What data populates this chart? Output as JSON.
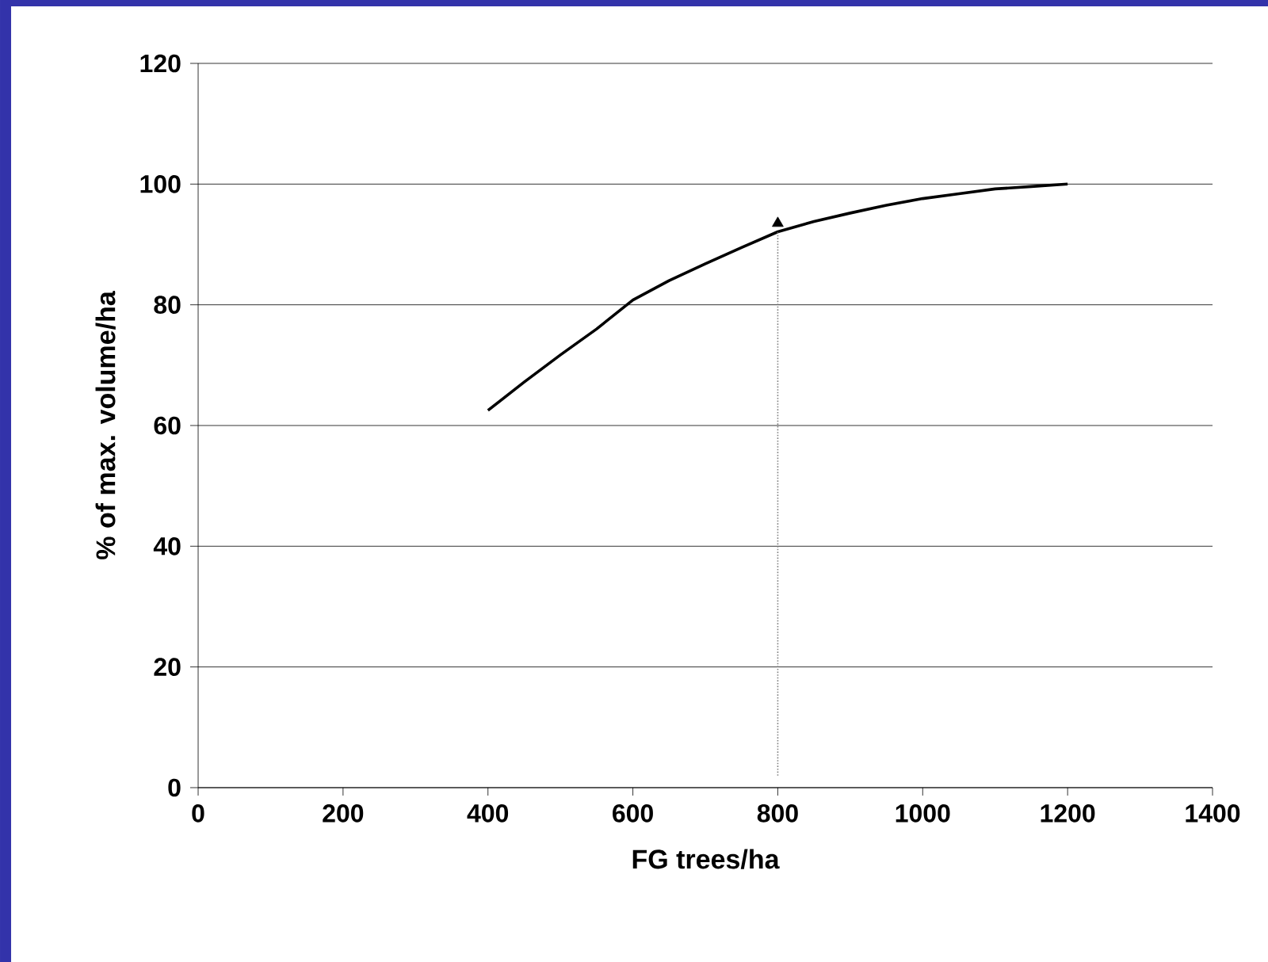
{
  "chart_data": {
    "type": "line",
    "xlabel": "FG trees/ha",
    "ylabel": "% of max. volume/ha",
    "xlim": [
      0,
      1400
    ],
    "xticks": [
      0,
      200,
      400,
      600,
      800,
      1000,
      1200,
      1400
    ],
    "ylim": [
      0,
      120
    ],
    "yticks": [
      0,
      20,
      40,
      60,
      80,
      100,
      120
    ],
    "grid": "y",
    "series": [
      {
        "color": "#000000",
        "x": [
          400,
          450,
          500,
          550,
          600,
          650,
          700,
          750,
          800,
          850,
          900,
          950,
          1000,
          1050,
          1100,
          1150,
          1200
        ],
        "values": [
          62.5,
          67.2,
          71.7,
          76,
          80.8,
          84,
          86.8,
          89.5,
          92.1,
          93.8,
          95.2,
          96.5,
          97.6,
          98.4,
          99.2,
          99.6,
          100
        ],
        "marker": "none",
        "line_style": "solid"
      },
      {
        "color": "#808080",
        "x": [
          800,
          800
        ],
        "values": [
          2,
          92.1
        ],
        "marker": "none",
        "line_style": "dotted"
      },
      {
        "type": "scatter",
        "color": "#000000",
        "x": [
          800
        ],
        "values": [
          93.5
        ],
        "marker": "triangle"
      }
    ]
  }
}
